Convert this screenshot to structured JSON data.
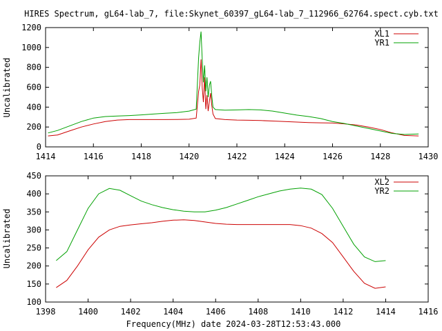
{
  "figure": {
    "title": "HIRES Spectrum, gL64-lab_7, file:Skynet_60397_gL64-lab_7_112966_62764.spect.cyb.txt",
    "xlabel": "Frequency(MHz) date 2024-03-28T12:53:43.000"
  },
  "chart_data": [
    {
      "type": "line",
      "title": "",
      "xlabel": "",
      "ylabel": "Uncalibrated",
      "xlim": [
        1414,
        1430
      ],
      "ylim": [
        0,
        1200
      ],
      "x_ticks": [
        "1414",
        "1416",
        "1418",
        "1420",
        "1422",
        "1424",
        "1426",
        "1428",
        "1430"
      ],
      "y_ticks": [
        "0",
        "200",
        "400",
        "600",
        "800",
        "1000",
        "1200"
      ],
      "legend_position": "top-right",
      "grid": false,
      "series": [
        {
          "name": "XL1",
          "color": "#cc0000",
          "x": [
            1414.1,
            1414.5,
            1415.0,
            1415.5,
            1416.0,
            1416.5,
            1417.0,
            1417.5,
            1418.0,
            1418.5,
            1419.0,
            1419.5,
            1420.0,
            1420.3,
            1420.4,
            1420.45,
            1420.5,
            1420.55,
            1420.6,
            1420.65,
            1420.7,
            1420.75,
            1420.8,
            1420.85,
            1420.9,
            1420.95,
            1421.0,
            1421.1,
            1421.5,
            1422.0,
            1422.5,
            1423.0,
            1423.5,
            1424.0,
            1424.5,
            1425.0,
            1425.5,
            1426.0,
            1426.5,
            1427.0,
            1427.5,
            1428.0,
            1428.5,
            1429.0,
            1429.6
          ],
          "y": [
            110,
            120,
            160,
            200,
            230,
            255,
            270,
            275,
            275,
            275,
            275,
            276,
            278,
            290,
            560,
            620,
            880,
            600,
            450,
            700,
            380,
            520,
            360,
            460,
            540,
            420,
            330,
            285,
            275,
            270,
            268,
            265,
            260,
            255,
            250,
            245,
            242,
            240,
            232,
            220,
            200,
            175,
            140,
            115,
            110
          ]
        },
        {
          "name": "YR1",
          "color": "#00a000",
          "x": [
            1414.1,
            1414.5,
            1415.0,
            1415.5,
            1416.0,
            1416.5,
            1417.0,
            1417.5,
            1418.0,
            1418.5,
            1419.0,
            1419.5,
            1420.0,
            1420.3,
            1420.4,
            1420.45,
            1420.5,
            1420.55,
            1420.6,
            1420.65,
            1420.7,
            1420.75,
            1420.8,
            1420.85,
            1420.9,
            1420.95,
            1421.0,
            1421.1,
            1421.5,
            1422.0,
            1422.5,
            1423.0,
            1423.5,
            1424.0,
            1424.5,
            1425.0,
            1425.5,
            1426.0,
            1426.5,
            1427.0,
            1427.5,
            1428.0,
            1428.5,
            1429.0,
            1429.6
          ],
          "y": [
            140,
            165,
            210,
            255,
            290,
            305,
            310,
            315,
            322,
            330,
            338,
            345,
            360,
            380,
            900,
            1050,
            1160,
            880,
            650,
            820,
            560,
            700,
            500,
            620,
            660,
            520,
            400,
            375,
            370,
            372,
            375,
            372,
            360,
            340,
            320,
            305,
            285,
            255,
            235,
            210,
            185,
            160,
            135,
            125,
            130
          ]
        }
      ]
    },
    {
      "type": "line",
      "title": "",
      "xlabel": "Frequency(MHz) date 2024-03-28T12:53:43.000",
      "ylabel": "Uncalibrated",
      "xlim": [
        1398,
        1416
      ],
      "ylim": [
        100,
        450
      ],
      "x_ticks": [
        "1398",
        "1400",
        "1402",
        "1404",
        "1406",
        "1408",
        "1410",
        "1412",
        "1414",
        "1416"
      ],
      "y_ticks": [
        "100",
        "150",
        "200",
        "250",
        "300",
        "350",
        "400",
        "450"
      ],
      "legend_position": "top-right",
      "grid": false,
      "series": [
        {
          "name": "XL2",
          "color": "#cc0000",
          "x": [
            1398.5,
            1399.0,
            1399.5,
            1400.0,
            1400.5,
            1401.0,
            1401.5,
            1402.0,
            1402.5,
            1403.0,
            1403.5,
            1404.0,
            1404.5,
            1405.0,
            1405.5,
            1406.0,
            1406.5,
            1407.0,
            1407.5,
            1408.0,
            1408.5,
            1409.0,
            1409.5,
            1410.0,
            1410.5,
            1411.0,
            1411.5,
            1412.0,
            1412.5,
            1413.0,
            1413.5,
            1414.0
          ],
          "y": [
            140,
            160,
            200,
            245,
            280,
            300,
            310,
            314,
            317,
            320,
            324,
            327,
            328,
            326,
            322,
            318,
            316,
            315,
            315,
            315,
            315,
            315,
            315,
            312,
            305,
            290,
            265,
            225,
            185,
            152,
            138,
            142
          ]
        },
        {
          "name": "YR2",
          "color": "#00a000",
          "x": [
            1398.5,
            1399.0,
            1399.5,
            1400.0,
            1400.5,
            1401.0,
            1401.5,
            1402.0,
            1402.5,
            1403.0,
            1403.5,
            1404.0,
            1404.5,
            1405.0,
            1405.5,
            1406.0,
            1406.5,
            1407.0,
            1407.5,
            1408.0,
            1408.5,
            1409.0,
            1409.5,
            1410.0,
            1410.5,
            1411.0,
            1411.5,
            1412.0,
            1412.5,
            1413.0,
            1413.5,
            1414.0
          ],
          "y": [
            215,
            240,
            300,
            360,
            400,
            415,
            410,
            395,
            380,
            370,
            362,
            356,
            352,
            350,
            350,
            355,
            362,
            372,
            382,
            392,
            400,
            408,
            413,
            416,
            413,
            398,
            360,
            310,
            260,
            225,
            212,
            215
          ]
        }
      ]
    }
  ]
}
